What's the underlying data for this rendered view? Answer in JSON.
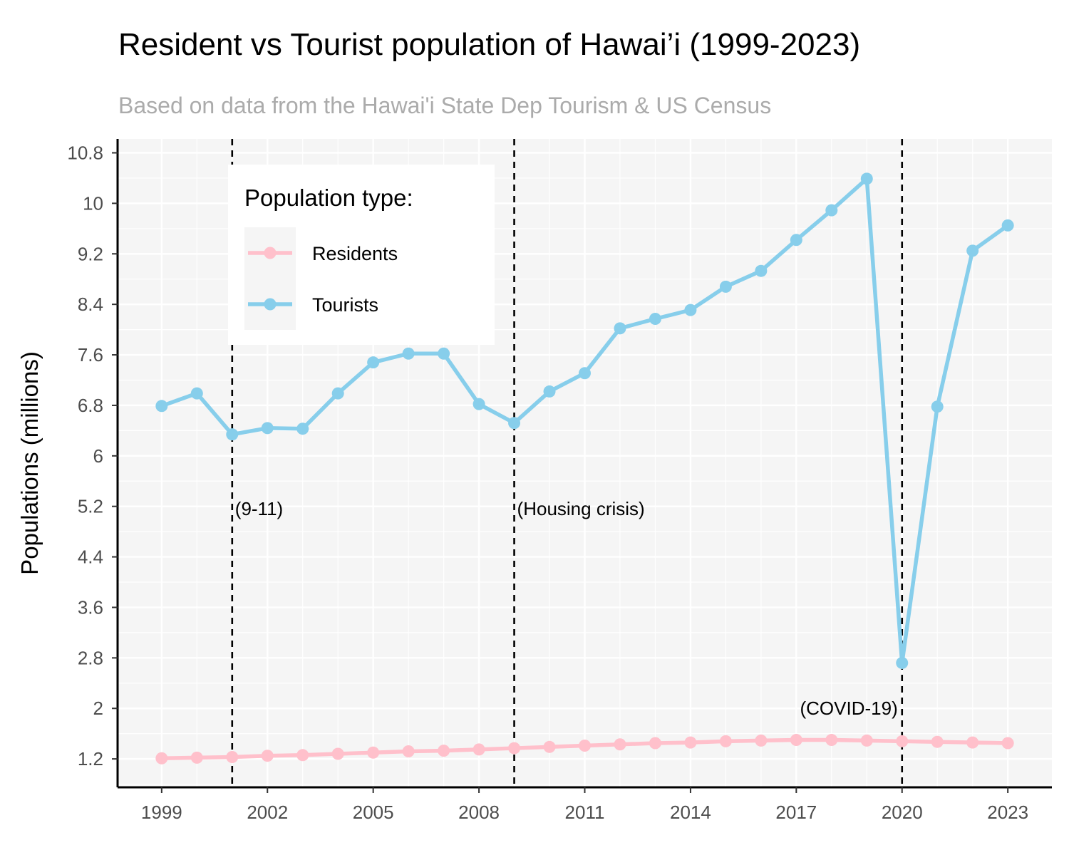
{
  "chart_data": {
    "type": "line",
    "title": "Resident vs Tourist population of Hawai’i (1999-2023)",
    "subtitle": "Based on data from the Hawai'i State Dep Tourism & US Census",
    "xlabel": "",
    "ylabel": "Populations (millions)",
    "xlim": [
      1997.75,
      2024.25
    ],
    "ylim": [
      0.75,
      11.02
    ],
    "x_ticks": [
      1999,
      2002,
      2005,
      2008,
      2011,
      2014,
      2017,
      2020,
      2023
    ],
    "y_ticks": [
      1.2,
      2,
      2.8,
      3.6,
      4.4,
      5.2,
      6,
      6.8,
      7.6,
      8.4,
      9.2,
      10,
      10.8
    ],
    "grid": true,
    "legend_title": "Population type:",
    "legend_position": "top-left",
    "x": [
      1999,
      2000,
      2001,
      2002,
      2003,
      2004,
      2005,
      2006,
      2007,
      2008,
      2009,
      2010,
      2011,
      2012,
      2013,
      2014,
      2015,
      2016,
      2017,
      2018,
      2019,
      2020,
      2021,
      2022,
      2023
    ],
    "series": [
      {
        "name": "Residents",
        "color": "#ffc0cb",
        "values": [
          1.21,
          1.22,
          1.23,
          1.25,
          1.26,
          1.28,
          1.3,
          1.32,
          1.33,
          1.35,
          1.37,
          1.39,
          1.41,
          1.43,
          1.45,
          1.46,
          1.48,
          1.49,
          1.5,
          1.5,
          1.49,
          1.48,
          1.47,
          1.46,
          1.45
        ]
      },
      {
        "name": "Tourists",
        "color": "#87ceeb",
        "values": [
          6.79,
          6.99,
          6.34,
          6.44,
          6.43,
          6.99,
          7.48,
          7.62,
          7.62,
          6.82,
          6.52,
          7.02,
          7.31,
          8.02,
          8.17,
          8.31,
          8.68,
          8.93,
          9.42,
          9.89,
          10.39,
          2.72,
          6.78,
          9.25,
          9.65
        ]
      }
    ],
    "events": [
      {
        "x": 2001,
        "label": "(9-11)"
      },
      {
        "x": 2009,
        "label": "(Housing crisis)"
      },
      {
        "x": 2020,
        "label": "(COVID-19)"
      }
    ]
  }
}
